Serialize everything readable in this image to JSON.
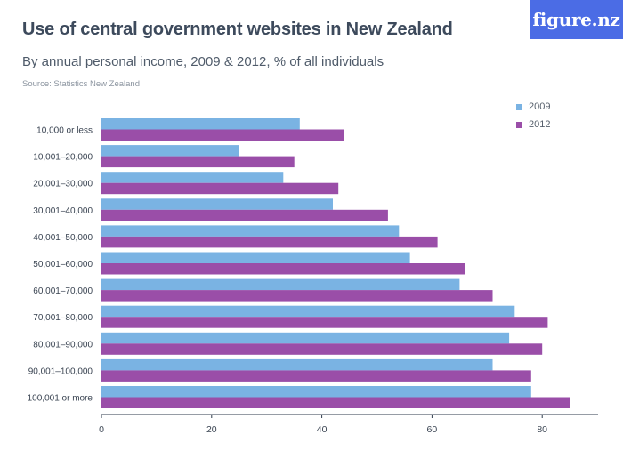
{
  "title": "Use of central government websites in New Zealand",
  "subtitle": "By annual personal income, 2009 & 2012, % of all individuals",
  "source": "Source: Statistics New Zealand",
  "logo_text": "figure.nz",
  "colors": {
    "series_2009": "#7ab3e3",
    "series_2012": "#9a4ea8",
    "axis": "#2e3a4b",
    "text": "#3a4452",
    "logo_bg": "#4b6ce5"
  },
  "chart_data": {
    "type": "bar",
    "orientation": "horizontal",
    "categories": [
      "10,000 or less",
      "10,001–20,000",
      "20,001–30,000",
      "30,001–40,000",
      "40,001–50,000",
      "50,001–60,000",
      "60,001–70,000",
      "70,001–80,000",
      "80,001–90,000",
      "90,001–100,000",
      "100,001 or more"
    ],
    "series": [
      {
        "name": "2009",
        "values": [
          36,
          25,
          33,
          42,
          54,
          56,
          65,
          75,
          74,
          71,
          78
        ]
      },
      {
        "name": "2012",
        "values": [
          44,
          35,
          43,
          52,
          61,
          66,
          71,
          81,
          80,
          78,
          85
        ]
      }
    ],
    "xlim": [
      0,
      90
    ],
    "xticks": [
      0,
      20,
      40,
      60,
      80
    ],
    "grid": false,
    "legend_position": "top-right"
  }
}
